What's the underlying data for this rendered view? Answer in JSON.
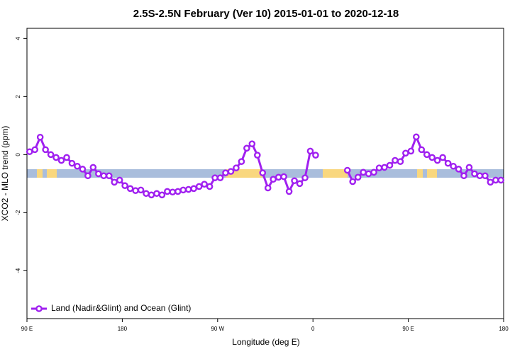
{
  "chart_data": {
    "type": "line",
    "title": "2.5S-2.5N February (Ver 10)   2015-01-01 to 2020-12-18",
    "xlabel": "Longitude (deg E)",
    "ylabel": "XCO2 - MLO trend (ppm)",
    "xlim": [
      90,
      540
    ],
    "ylim": [
      -5.65,
      4.35
    ],
    "xticks": [
      {
        "value": 90,
        "label": "90 E"
      },
      180,
      {
        "value": 270,
        "label": "90 W"
      },
      {
        "value": 360,
        "label": "0"
      },
      {
        "value": 450,
        "label": "90 E"
      },
      {
        "value": 540,
        "label": "180"
      }
    ],
    "yticks": [
      -4,
      -2,
      0,
      2,
      4
    ],
    "legend": "bottomleft",
    "x": [
      92.5,
      97.5,
      102.5,
      107.5,
      112.5,
      117.5,
      122.5,
      127.5,
      132.5,
      137.5,
      142.5,
      147.5,
      152.5,
      157.5,
      162.5,
      167.5,
      172.5,
      177.5,
      182.5,
      187.5,
      192.5,
      197.5,
      202.5,
      207.5,
      212.5,
      217.5,
      222.5,
      227.5,
      232.5,
      237.5,
      242.5,
      247.5,
      252.5,
      257.5,
      262.5,
      267.5,
      272.5,
      277.5,
      282.5,
      287.5,
      292.5,
      297.5,
      302.5,
      307.5,
      312.5,
      317.5,
      322.5,
      327.5,
      332.5,
      337.5,
      342.5,
      347.5,
      352.5,
      357.5,
      362.5,
      367.5,
      372.5,
      377.5,
      382.5,
      387.5,
      392.5,
      397.5,
      402.5,
      407.5,
      412.5,
      417.5,
      422.5,
      427.5,
      432.5,
      437.5,
      442.5,
      447.5,
      452.5,
      457.5,
      462.5,
      467.5,
      472.5,
      477.5,
      482.5,
      487.5,
      492.5,
      497.5,
      502.5,
      507.5,
      512.5,
      517.5,
      522.5,
      527.5,
      532.5,
      537.5
    ],
    "series": [
      {
        "name": "Land (Nadir&Glint) and Ocean (Glint)",
        "color": "#a020f0",
        "values": [
          0.1,
          0.17,
          0.6,
          0.17,
          0,
          -0.1,
          -0.2,
          -0.1,
          -0.3,
          -0.4,
          -0.5,
          -0.73,
          -0.44,
          -0.66,
          -0.73,
          -0.73,
          -0.95,
          -0.88,
          -1.07,
          -1.17,
          -1.24,
          -1.22,
          -1.34,
          -1.39,
          -1.34,
          -1.39,
          -1.27,
          -1.29,
          -1.27,
          -1.22,
          -1.2,
          -1.17,
          -1.1,
          -1.02,
          -1.1,
          -0.8,
          -0.8,
          -0.63,
          -0.58,
          -0.46,
          -0.24,
          0.22,
          0.37,
          -0.02,
          -0.63,
          -1.15,
          -0.85,
          -0.78,
          -0.76,
          -1.27,
          -0.9,
          -1.0,
          -0.8,
          0.12,
          -0.02,
          null,
          null,
          null,
          null,
          null,
          -0.54,
          -0.93,
          -0.78,
          -0.61,
          -0.66,
          -0.61,
          -0.46,
          -0.44,
          -0.37,
          -0.2,
          -0.24,
          0.05,
          0.12,
          0.61,
          0.17,
          0,
          -0.1,
          -0.2,
          -0.1,
          -0.3,
          -0.4,
          -0.5,
          -0.73,
          -0.44,
          -0.66,
          -0.73,
          -0.73,
          -0.95,
          -0.88,
          -0.88
        ]
      }
    ]
  }
}
